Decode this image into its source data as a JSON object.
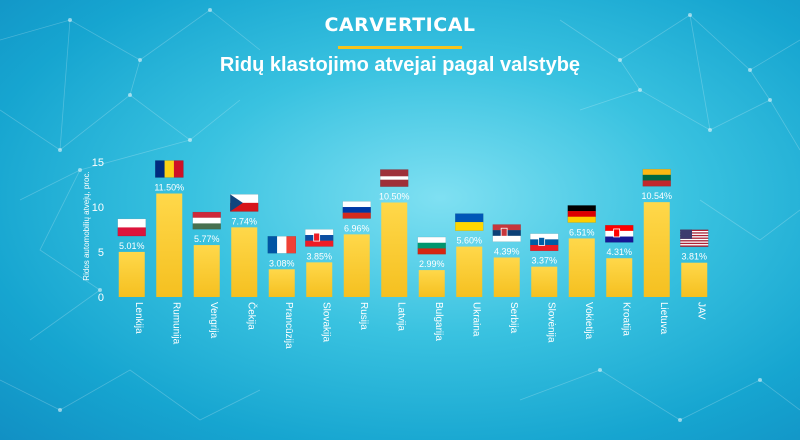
{
  "brand": "CARVERTICAL",
  "title": "Ridų klastojimo atvejai pagal valstybę",
  "colors": {
    "bar": "#f5c020",
    "bar_light": "#ffd84a",
    "accent": "#f7c31a",
    "text": "#ffffff"
  },
  "chart_data": {
    "type": "bar",
    "ylabel": "Ridos automobilių atvejų, proc.",
    "ylim": [
      0,
      15
    ],
    "yticks": [
      0,
      5,
      10,
      15
    ],
    "grid": false,
    "categories": [
      "Lenkija",
      "Rumunija",
      "Vengrija",
      "Čekija",
      "Prancūzija",
      "Slovakija",
      "Rusija",
      "Latvija",
      "Bulgarija",
      "Ukraina",
      "Serbija",
      "Slovėnija",
      "Vokietija",
      "Kroatija",
      "Lietuva",
      "JAV"
    ],
    "values": [
      5.01,
      11.5,
      5.77,
      7.74,
      3.08,
      3.85,
      6.96,
      10.5,
      2.99,
      5.6,
      4.39,
      3.37,
      6.51,
      4.31,
      10.54,
      3.81
    ],
    "value_labels": [
      "5.01%",
      "11.50%",
      "5.77%",
      "7.74%",
      "3.08%",
      "3.85%",
      "6.96%",
      "10.50%",
      "2.99%",
      "5.60%",
      "4.39%",
      "3.37%",
      "6.51%",
      "4.31%",
      "10.54%",
      "3.81%"
    ],
    "flags": [
      {
        "icon": "poland-flag-icon",
        "stripes": [
          "#ffffff",
          "#dc143c"
        ]
      },
      {
        "icon": "romania-flag-icon",
        "vstripes": [
          "#002b7f",
          "#fcd116",
          "#ce1126"
        ]
      },
      {
        "icon": "hungary-flag-icon",
        "stripes": [
          "#ce2939",
          "#ffffff",
          "#477050"
        ]
      },
      {
        "icon": "czech-flag-icon",
        "stripes": [
          "#ffffff",
          "#d7141a"
        ],
        "triangle": "#11457e"
      },
      {
        "icon": "france-flag-icon",
        "vstripes": [
          "#0055a4",
          "#ffffff",
          "#ef4135"
        ]
      },
      {
        "icon": "slovakia-flag-icon",
        "stripes": [
          "#ffffff",
          "#0b4ea2",
          "#ee1c25"
        ],
        "emblem": "#ee1c25"
      },
      {
        "icon": "russia-flag-icon",
        "stripes": [
          "#ffffff",
          "#0039a6",
          "#d52b1e"
        ]
      },
      {
        "icon": "latvia-flag-icon",
        "weighted": [
          [
            "#9e3039",
            2
          ],
          [
            "#ffffff",
            1
          ],
          [
            "#9e3039",
            2
          ]
        ]
      },
      {
        "icon": "bulgaria-flag-icon",
        "stripes": [
          "#ffffff",
          "#00966e",
          "#d62612"
        ]
      },
      {
        "icon": "ukraine-flag-icon",
        "stripes": [
          "#0057b7",
          "#ffd700"
        ]
      },
      {
        "icon": "serbia-flag-icon",
        "stripes": [
          "#c6363c",
          "#0c4076",
          "#ffffff"
        ],
        "emblem": "#c6363c"
      },
      {
        "icon": "slovenia-flag-icon",
        "stripes": [
          "#ffffff",
          "#005da4",
          "#ed1c24"
        ],
        "emblem": "#005da4"
      },
      {
        "icon": "germany-flag-icon",
        "stripes": [
          "#000000",
          "#dd0000",
          "#ffce00"
        ]
      },
      {
        "icon": "croatia-flag-icon",
        "stripes": [
          "#ff0000",
          "#ffffff",
          "#171796"
        ],
        "emblem": "#ff0000"
      },
      {
        "icon": "lithuania-flag-icon",
        "stripes": [
          "#fdb913",
          "#006a44",
          "#c1272d"
        ]
      },
      {
        "icon": "usa-flag-icon",
        "usa": true
      }
    ]
  }
}
